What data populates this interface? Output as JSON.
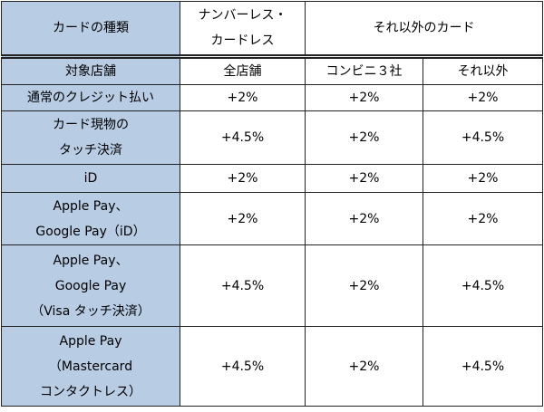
{
  "table": {
    "header": [
      [
        "カードの種類"
      ],
      [
        "ナンバーレス・",
        "カードレス"
      ],
      [
        "それ以外のカード"
      ]
    ],
    "subheader": [
      "対象店舗",
      "全店舗",
      "コンビニ３社",
      "それ以外"
    ],
    "rows": [
      {
        "label": [
          "通常のクレジット払い"
        ],
        "values": [
          "+2%",
          "+2%",
          "+2%"
        ]
      },
      {
        "label": [
          "カード現物の",
          "タッチ決済"
        ],
        "values": [
          "+4.5%",
          "+2%",
          "+4.5%"
        ]
      },
      {
        "label": [
          "iD"
        ],
        "values": [
          "+2%",
          "+2%",
          "+2%"
        ]
      },
      {
        "label": [
          "Apple Pay、",
          "Google Pay（iD）"
        ],
        "values": [
          "+2%",
          "+2%",
          "+2%"
        ]
      },
      {
        "label": [
          "Apple Pay、",
          "Google Pay",
          "（Visa タッチ決済）"
        ],
        "values": [
          "+4.5%",
          "+2%",
          "+4.5%"
        ]
      },
      {
        "label": [
          "Apple Pay",
          "（Mastercard",
          "コンタクトレス）"
        ],
        "values": [
          "+4.5%",
          "+2%",
          "+4.5%"
        ]
      }
    ]
  }
}
